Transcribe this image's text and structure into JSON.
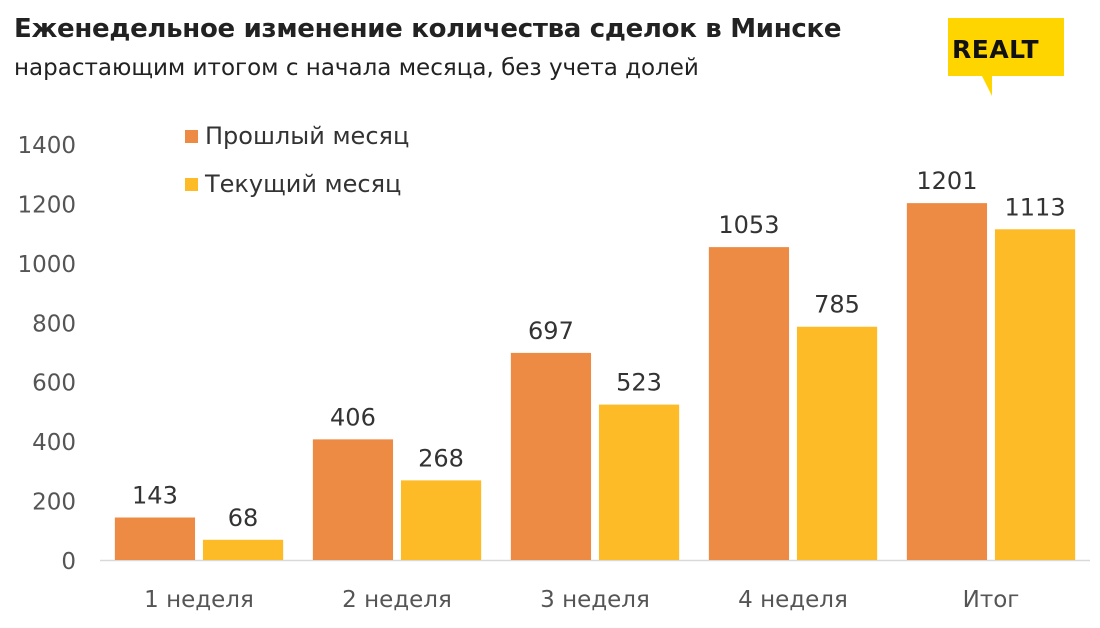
{
  "header": {
    "title": "Еженедельное изменение количества сделок в Минске",
    "subtitle": "нарастающим итогом с начала месяца, без учета долей"
  },
  "logo": {
    "text": "REALT",
    "color": "#FFD500"
  },
  "colors": {
    "previous_month": "#ED8B45",
    "current_month": "#FDBB27"
  },
  "chart_data": {
    "type": "bar",
    "categories": [
      "1 неделя",
      "2 неделя",
      "3 неделя",
      "4 неделя",
      "Итог"
    ],
    "series": [
      {
        "name": "Прошлый месяц",
        "values": [
          143,
          406,
          697,
          1053,
          1201
        ]
      },
      {
        "name": "Текущий месяц",
        "values": [
          68,
          268,
          523,
          785,
          1113
        ]
      }
    ],
    "yticks": [
      "0",
      "200",
      "400",
      "600",
      "800",
      "1000",
      "1200",
      "1400"
    ],
    "ylim": [
      0,
      1400
    ],
    "grid": false,
    "legend_position": "top-left",
    "data_labels": true
  }
}
